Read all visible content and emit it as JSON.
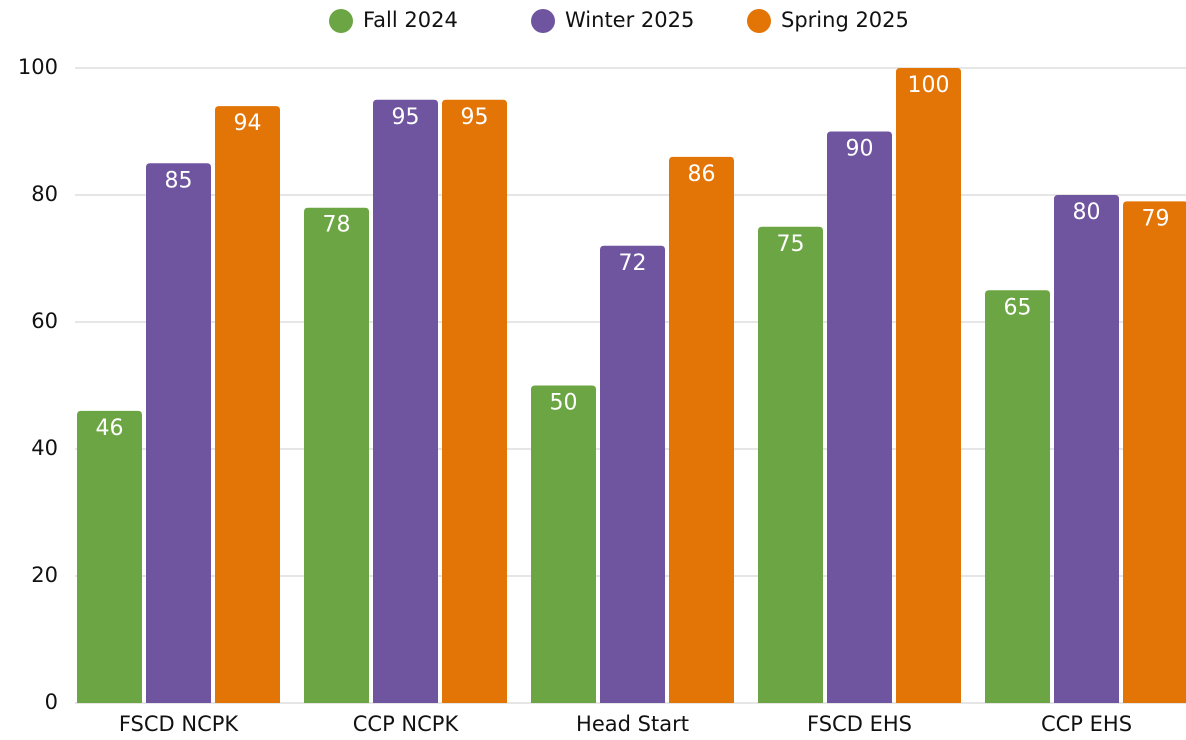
{
  "chart_data": {
    "type": "grouped_bar",
    "categories": [
      "FSCD NCPK",
      "CCP NCPK",
      "Head Start",
      "FSCD EHS",
      "CCP EHS"
    ],
    "series": [
      {
        "name": "Fall 2024",
        "color": "#6ca544",
        "values": [
          46,
          78,
          50,
          75,
          65
        ]
      },
      {
        "name": "Winter 2025",
        "color": "#6f54a0",
        "values": [
          85,
          95,
          72,
          90,
          80
        ]
      },
      {
        "name": "Spring 2025",
        "color": "#e37406",
        "values": [
          94,
          95,
          86,
          100,
          79
        ]
      }
    ],
    "ylim": [
      0,
      100
    ],
    "yticks": [
      0,
      20,
      40,
      60,
      80,
      100
    ],
    "grid": true,
    "legend": "top"
  }
}
